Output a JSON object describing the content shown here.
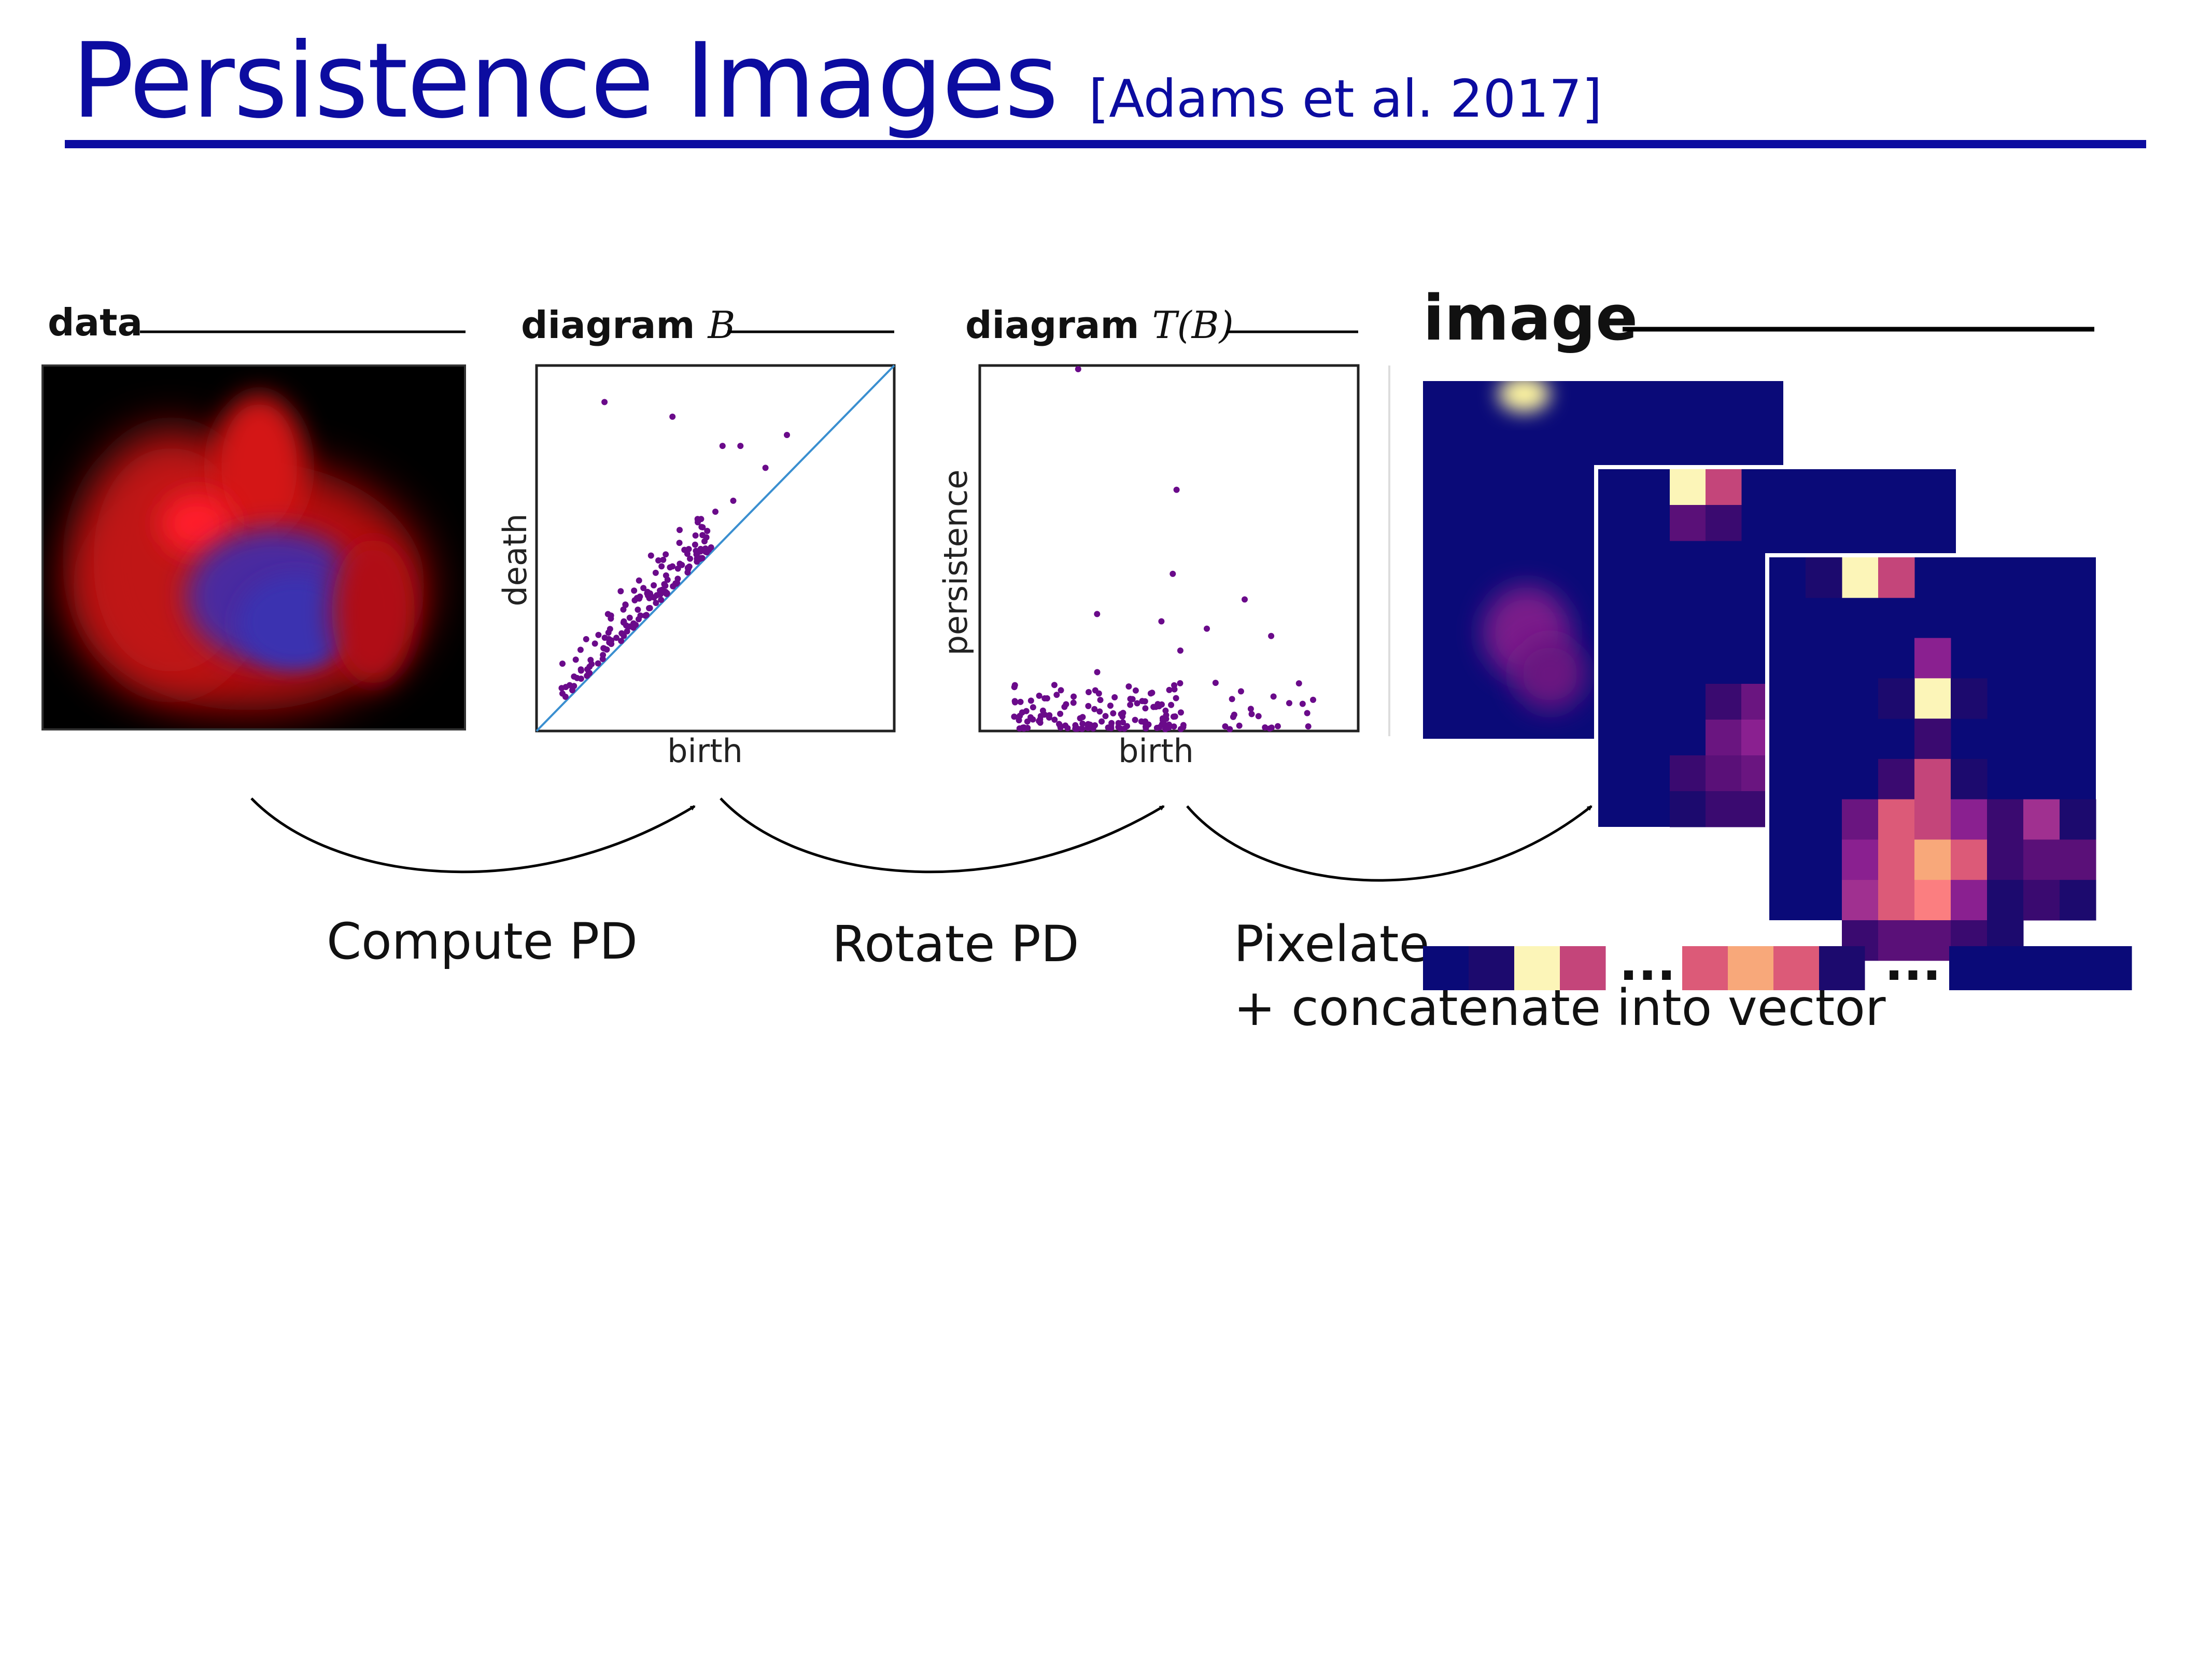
{
  "slide": {
    "title": "Persistence Images",
    "citation": "[Adams et al. 2017]"
  },
  "panels": {
    "data": {
      "label": "data"
    },
    "diagram_b": {
      "label_bold": "diagram",
      "label_math": "B",
      "xlabel": "birth",
      "ylabel": "death"
    },
    "diagram_tb": {
      "label_bold": "diagram",
      "label_math": "T(B)",
      "xlabel": "birth",
      "ylabel": "persistence"
    },
    "image": {
      "label": "image"
    }
  },
  "steps": {
    "compute": "Compute PD",
    "rotate": "Rotate PD",
    "pixelate_line1": "Pixelate",
    "pixelate_line2": "+ concatenate into vector"
  },
  "vector": {
    "ellipsis_1": "...",
    "ellipsis_2": "...",
    "cells_group1": [
      "#0a0a78",
      "#1c0a6e",
      "#fcf5b8",
      "#c4457a"
    ],
    "cells_group2": [
      "#dc5a78",
      "#f8a87a",
      "#dc5a78",
      "#1c0a6e"
    ],
    "cells_group3": [
      "#0a0a78",
      "#0a0a78",
      "#0a0a78",
      "#0a0a78"
    ]
  },
  "colors": {
    "title": "#0c0ca0",
    "point": "#6a0a8a",
    "diagonal": "#3a8fd0",
    "heatmap_bg": "#0a0a78"
  }
}
